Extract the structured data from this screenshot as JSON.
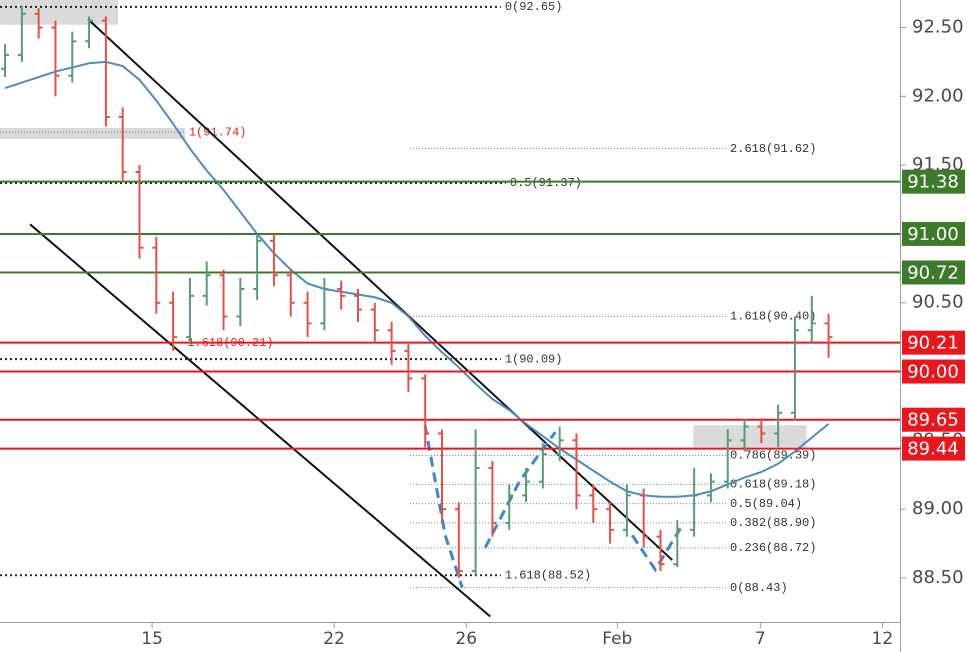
{
  "chart_data": {
    "type": "ohlc",
    "up_color": "#5a9a78",
    "down_color": "#e0524a",
    "xlim": [
      -0.3,
      53.25
    ],
    "xticks": [
      {
        "value": 8.75,
        "label": "15"
      },
      {
        "value": 19.58,
        "label": "22"
      },
      {
        "value": 27.44,
        "label": "26"
      },
      {
        "value": 36.43,
        "label": "Feb"
      },
      {
        "value": 44.94,
        "label": "7"
      },
      {
        "value": 52.2,
        "label": "12"
      }
    ],
    "ylim": [
      88.18,
      92.7
    ],
    "yticks": [
      {
        "value": 88.5,
        "label": "88.50"
      },
      {
        "value": 89.0,
        "label": "89.00"
      },
      {
        "value": 89.5,
        "label": "89.50"
      },
      {
        "value": 90.0,
        "label": "90.00"
      },
      {
        "value": 90.5,
        "label": "90.50"
      },
      {
        "value": 91.0,
        "label": "91.00"
      },
      {
        "value": 91.5,
        "label": "91.50"
      },
      {
        "value": 92.0,
        "label": "92.00"
      },
      {
        "value": 92.5,
        "label": "92.50"
      }
    ],
    "open": [
      92.2,
      92.3,
      92.6,
      92.5,
      92.15,
      92.4,
      92.55,
      91.85,
      91.45,
      90.9,
      90.5,
      90.25,
      90.55,
      90.7,
      90.4,
      90.6,
      90.95,
      90.7,
      90.5,
      90.35,
      90.6,
      90.55,
      90.45,
      90.3,
      90.15,
      89.95,
      89.55,
      89.0,
      88.55,
      89.3,
      88.9,
      89.1,
      89.2,
      89.4,
      89.5,
      89.1,
      89.0,
      88.85,
      89.1,
      88.8,
      88.6,
      88.85,
      89.1,
      89.2,
      89.5,
      89.6,
      89.55,
      89.7,
      90.3,
      90.35
    ],
    "high": [
      92.38,
      92.66,
      92.64,
      92.55,
      92.47,
      92.58,
      92.58,
      91.92,
      91.5,
      90.98,
      90.58,
      90.68,
      90.8,
      90.74,
      90.68,
      91.0,
      91.0,
      90.75,
      90.58,
      90.68,
      90.66,
      90.6,
      90.5,
      90.36,
      90.2,
      89.98,
      89.58,
      89.05,
      89.58,
      89.35,
      89.18,
      89.3,
      89.48,
      89.6,
      89.55,
      89.18,
      89.05,
      89.18,
      89.15,
      88.85,
      88.92,
      89.3,
      89.26,
      89.58,
      89.65,
      89.66,
      89.76,
      90.4,
      90.55,
      90.42
    ],
    "low": [
      92.14,
      92.25,
      92.42,
      92.0,
      92.1,
      92.35,
      91.78,
      91.38,
      90.82,
      90.42,
      90.15,
      90.2,
      90.48,
      90.3,
      90.33,
      90.52,
      90.62,
      90.4,
      90.25,
      90.3,
      90.45,
      90.36,
      90.22,
      90.05,
      89.85,
      89.45,
      88.9,
      88.5,
      88.52,
      88.8,
      88.85,
      89.05,
      89.15,
      89.35,
      89.0,
      88.9,
      88.75,
      88.8,
      88.72,
      88.55,
      88.58,
      88.8,
      89.05,
      89.15,
      89.42,
      89.48,
      89.45,
      89.65,
      90.2,
      90.1
    ],
    "close": [
      92.3,
      92.6,
      92.5,
      92.15,
      92.4,
      92.55,
      91.85,
      91.45,
      90.9,
      90.5,
      90.25,
      90.55,
      90.7,
      90.4,
      90.6,
      90.95,
      90.7,
      90.5,
      90.35,
      90.6,
      90.55,
      90.45,
      90.3,
      90.15,
      89.95,
      89.55,
      89.0,
      88.55,
      89.3,
      88.9,
      89.1,
      89.2,
      89.4,
      89.5,
      89.1,
      89.0,
      88.85,
      89.1,
      88.8,
      88.6,
      88.85,
      89.1,
      89.2,
      89.5,
      89.6,
      89.55,
      89.7,
      90.3,
      90.35,
      90.25
    ],
    "ma": {
      "color": "#4a8cc4",
      "values": [
        92.06,
        92.1,
        92.14,
        92.18,
        92.21,
        92.24,
        92.25,
        92.22,
        92.12,
        91.97,
        91.8,
        91.62,
        91.46,
        91.32,
        91.16,
        91.0,
        90.86,
        90.74,
        90.64,
        90.6,
        90.58,
        90.56,
        90.54,
        90.5,
        90.4,
        90.26,
        90.14,
        90.03,
        89.91,
        89.8,
        89.72,
        89.62,
        89.53,
        89.44,
        89.36,
        89.28,
        89.2,
        89.13,
        89.1,
        89.09,
        89.09,
        89.1,
        89.13,
        89.18,
        89.23,
        89.27,
        89.33,
        89.42,
        89.52,
        89.62
      ]
    },
    "levels": [
      {
        "value": 91.38,
        "label": "91.38",
        "color": "#3d7a2b"
      },
      {
        "value": 91.0,
        "label": "91.00",
        "color": "#3d7a2b"
      },
      {
        "value": 90.72,
        "label": "90.72",
        "color": "#3d7a2b"
      },
      {
        "value": 90.21,
        "label": "90.21",
        "color": "#e8161d"
      },
      {
        "value": 90.0,
        "label": "90.00",
        "color": "#e8161d"
      },
      {
        "value": 89.65,
        "label": "89.65",
        "color": "#e8161d"
      },
      {
        "value": 89.44,
        "label": "89.44",
        "color": "#e8161d"
      }
    ],
    "zones": [
      {
        "x": [
          -0.3,
          6.72
        ],
        "y": [
          92.52,
          92.7
        ]
      },
      {
        "x": [
          -0.3,
          10.71
        ],
        "y": [
          91.69,
          91.77
        ]
      },
      {
        "x": [
          40.95,
          47.68
        ],
        "y": [
          89.45,
          89.61
        ]
      }
    ],
    "trendlines": [
      [
        [
          4.94,
          92.56
        ],
        [
          39.7,
          88.63
        ]
      ],
      [
        [
          1.49,
          91.07
        ],
        [
          28.87,
          88.22
        ]
      ]
    ],
    "dashed_paths": [
      [
        [
          24.99,
          89.61
        ],
        [
          26.19,
          88.81
        ],
        [
          27.2,
          88.43
        ]
      ],
      [
        [
          28.57,
          88.72
        ],
        [
          30.65,
          89.21
        ],
        [
          32.74,
          89.56
        ]
      ],
      [
        [
          37.32,
          88.81
        ],
        [
          38.69,
          88.56
        ],
        [
          40.18,
          88.86
        ]
      ]
    ],
    "annotations": [
      {
        "label": "0(92.65)",
        "value": 92.65,
        "x": [
          -0.3,
          29.5
        ],
        "color": "#333333",
        "style": "dotted"
      },
      {
        "label": "1(91.74)",
        "value": 91.74,
        "x": [
          -0.3,
          10.7
        ],
        "color": "#e0261f",
        "style": "thin"
      },
      {
        "label": "2.618(91.62)",
        "value": 91.62,
        "x": [
          24.1,
          42.9
        ],
        "color": "#333333",
        "style": "thin"
      },
      {
        "label": "0.5(91.37)",
        "value": 91.37,
        "x": [
          -0.3,
          29.8
        ],
        "color": "#333333",
        "style": "dotted"
      },
      {
        "label": "1.618(90.40)",
        "value": 90.4,
        "x": [
          24.1,
          42.9
        ],
        "color": "#333333",
        "style": "thin"
      },
      {
        "label": "1.618(90.21)",
        "value": 90.21,
        "x": [
          -0.3,
          10.6
        ],
        "color": "#e0261f",
        "style": "thin"
      },
      {
        "label": "1(90.09)",
        "value": 90.09,
        "x": [
          -0.3,
          29.5
        ],
        "color": "#333333",
        "style": "dotted"
      },
      {
        "label": "0.786(89.39)",
        "value": 89.39,
        "x": [
          24.1,
          42.9
        ],
        "color": "#333333",
        "style": "thin"
      },
      {
        "label": "0.618(89.18)",
        "value": 89.18,
        "x": [
          24.1,
          42.9
        ],
        "color": "#333333",
        "style": "thin"
      },
      {
        "label": "0.5(89.04)",
        "value": 89.04,
        "x": [
          24.1,
          42.9
        ],
        "color": "#333333",
        "style": "thin"
      },
      {
        "label": "0.382(88.90)",
        "value": 88.9,
        "x": [
          24.1,
          42.9
        ],
        "color": "#333333",
        "style": "thin"
      },
      {
        "label": "0.236(88.72)",
        "value": 88.72,
        "x": [
          24.1,
          42.9
        ],
        "color": "#333333",
        "style": "thin"
      },
      {
        "label": "0(88.43)",
        "value": 88.43,
        "x": [
          24.1,
          42.9
        ],
        "color": "#333333",
        "style": "thin"
      },
      {
        "label": "1.618(88.52)",
        "value": 88.52,
        "x": [
          -0.3,
          29.5
        ],
        "color": "#333333",
        "style": "dotted"
      }
    ]
  }
}
